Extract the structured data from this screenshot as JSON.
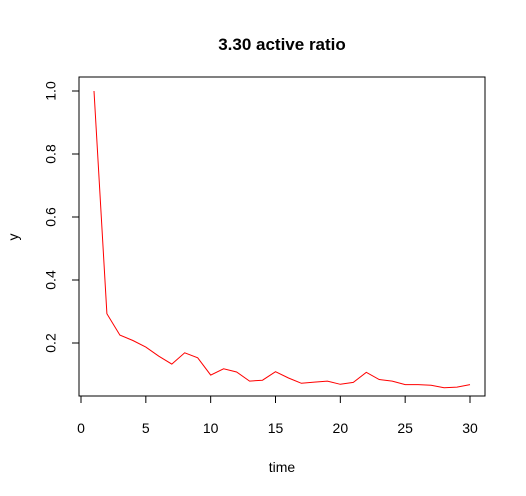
{
  "chart_data": {
    "type": "line",
    "title": "3.30 active ratio",
    "xlabel": "time",
    "ylabel": "y",
    "xlim": [
      0,
      30
    ],
    "ylim": [
      0.05,
      1.0
    ],
    "xticks": [
      0,
      5,
      10,
      15,
      20,
      25,
      30
    ],
    "yticks": [
      0.2,
      0.4,
      0.6,
      0.8,
      1.0
    ],
    "ytick_labels": [
      "0.2",
      "0.4",
      "0.6",
      "0.8",
      "1.0"
    ],
    "grid": false,
    "series": [
      {
        "color": "#ff0000",
        "x": [
          1,
          2,
          3,
          4,
          5,
          6,
          7,
          8,
          9,
          10,
          11,
          12,
          13,
          14,
          15,
          16,
          17,
          18,
          19,
          20,
          21,
          22,
          23,
          24,
          25,
          26,
          27,
          28,
          29,
          30
        ],
        "y": [
          1.0,
          0.293,
          0.225,
          0.208,
          0.187,
          0.158,
          0.133,
          0.169,
          0.153,
          0.098,
          0.118,
          0.108,
          0.079,
          0.082,
          0.109,
          0.089,
          0.072,
          0.076,
          0.079,
          0.069,
          0.075,
          0.107,
          0.084,
          0.079,
          0.068,
          0.068,
          0.066,
          0.058,
          0.06,
          0.068
        ]
      }
    ]
  }
}
